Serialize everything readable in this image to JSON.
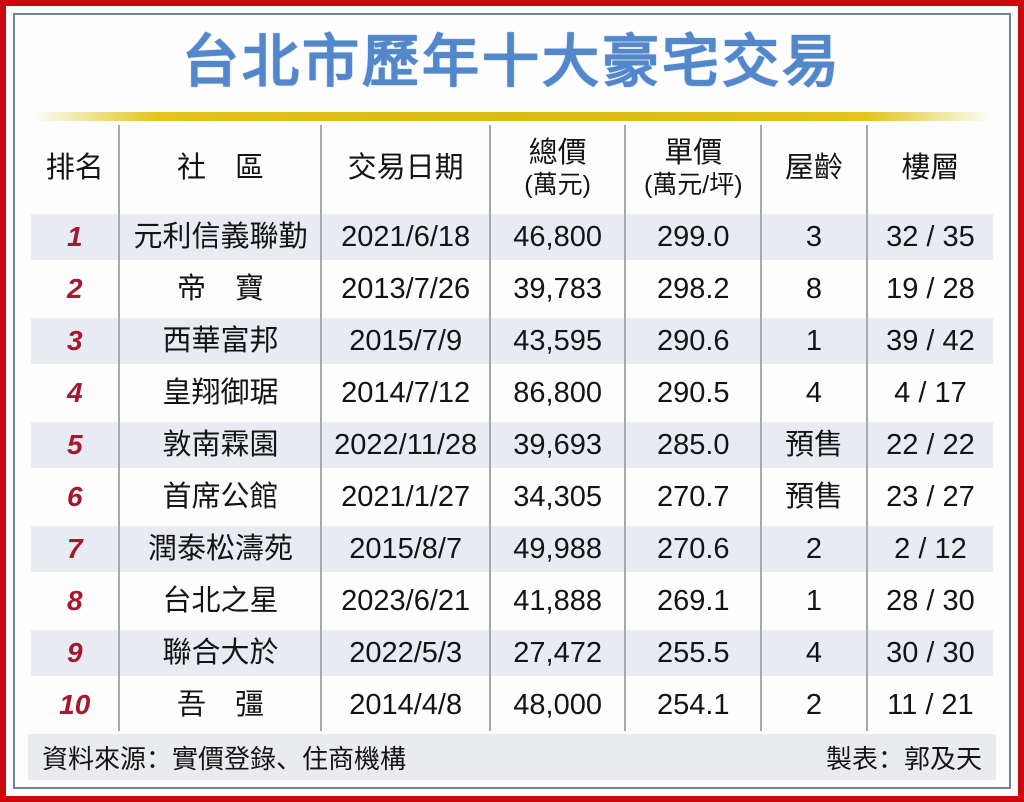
{
  "title": "台北市歷年十大豪宅交易",
  "table": {
    "headers": {
      "rank": "排名",
      "community": "社　區",
      "date": "交易日期",
      "total1": "總價",
      "total2": "(萬元)",
      "unit1": "單價",
      "unit2": "(萬元/坪)",
      "age": "屋齡",
      "floor": "樓層"
    },
    "rows": [
      {
        "rank": "1",
        "community": "元利信義聯勤",
        "date": "2021/6/18",
        "total": "46,800",
        "unit": "299.0",
        "age": "3",
        "floor": "32 / 35"
      },
      {
        "rank": "2",
        "community": "帝　寶",
        "date": "2013/7/26",
        "total": "39,783",
        "unit": "298.2",
        "age": "8",
        "floor": "19 / 28"
      },
      {
        "rank": "3",
        "community": "西華富邦",
        "date": "2015/7/9",
        "total": "43,595",
        "unit": "290.6",
        "age": "1",
        "floor": "39 / 42"
      },
      {
        "rank": "4",
        "community": "皇翔御琚",
        "date": "2014/7/12",
        "total": "86,800",
        "unit": "290.5",
        "age": "4",
        "floor": "4 / 17"
      },
      {
        "rank": "5",
        "community": "敦南霖園",
        "date": "2022/11/28",
        "total": "39,693",
        "unit": "285.0",
        "age": "預售",
        "floor": "22 / 22"
      },
      {
        "rank": "6",
        "community": "首席公館",
        "date": "2021/1/27",
        "total": "34,305",
        "unit": "270.7",
        "age": "預售",
        "floor": "23 / 27"
      },
      {
        "rank": "7",
        "community": "潤泰松濤苑",
        "date": "2015/8/7",
        "total": "49,988",
        "unit": "270.6",
        "age": "2",
        "floor": "2 / 12"
      },
      {
        "rank": "8",
        "community": "台北之星",
        "date": "2023/6/21",
        "total": "41,888",
        "unit": "269.1",
        "age": "1",
        "floor": "28 / 30"
      },
      {
        "rank": "9",
        "community": "聯合大於",
        "date": "2022/5/3",
        "total": "27,472",
        "unit": "255.5",
        "age": "4",
        "floor": "30 / 30"
      },
      {
        "rank": "10",
        "community": "吾　彊",
        "date": "2014/4/8",
        "total": "48,000",
        "unit": "254.1",
        "age": "2",
        "floor": "11 / 21"
      }
    ]
  },
  "footer": {
    "source": "資料來源：實價登錄、住商機構",
    "credit": "製表：郭及天"
  },
  "colors": {
    "border_red": "#C9090D",
    "inner_frame": "#6E82A0",
    "title_blue": "#5287CB",
    "accent_yellow": "#E2C41C",
    "rank_red": "#A5182E",
    "stripe": "#E8ECF2",
    "divider": "#A3A9B2",
    "footer_bg": "#E9EBEE"
  },
  "chart_data": {
    "type": "table",
    "title": "台北市歷年十大豪宅交易",
    "columns": [
      "排名",
      "社區",
      "交易日期",
      "總價(萬元)",
      "單價(萬元/坪)",
      "屋齡",
      "樓層"
    ],
    "rows": [
      [
        "1",
        "元利信義聯勤",
        "2021/6/18",
        "46,800",
        "299.0",
        "3",
        "32 / 35"
      ],
      [
        "2",
        "帝寶",
        "2013/7/26",
        "39,783",
        "298.2",
        "8",
        "19 / 28"
      ],
      [
        "3",
        "西華富邦",
        "2015/7/9",
        "43,595",
        "290.6",
        "1",
        "39 / 42"
      ],
      [
        "4",
        "皇翔御琚",
        "2014/7/12",
        "86,800",
        "290.5",
        "4",
        "4 / 17"
      ],
      [
        "5",
        "敦南霖園",
        "2022/11/28",
        "39,693",
        "285.0",
        "預售",
        "22 / 22"
      ],
      [
        "6",
        "首席公館",
        "2021/1/27",
        "34,305",
        "270.7",
        "預售",
        "23 / 27"
      ],
      [
        "7",
        "潤泰松濤苑",
        "2015/8/7",
        "49,988",
        "270.6",
        "2",
        "2 / 12"
      ],
      [
        "8",
        "台北之星",
        "2023/6/21",
        "41,888",
        "269.1",
        "1",
        "28 / 30"
      ],
      [
        "9",
        "聯合大於",
        "2022/5/3",
        "27,472",
        "255.5",
        "4",
        "30 / 30"
      ],
      [
        "10",
        "吾彊",
        "2014/4/8",
        "48,000",
        "254.1",
        "2",
        "11 / 21"
      ]
    ],
    "source": "實價登錄、住商機構",
    "credit": "郭及天"
  }
}
